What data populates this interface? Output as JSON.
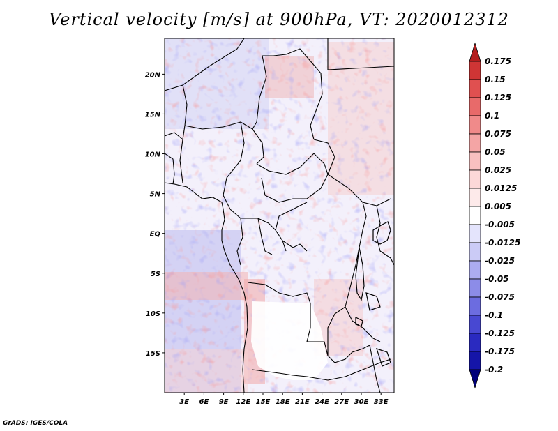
{
  "title": "Vertical velocity [m/s] at 900hPa, VT: 2020012312",
  "footer": "GrADS: IGES/COLA",
  "map": {
    "region": "Central Africa",
    "lat_range": [
      -20,
      24.5
    ],
    "lon_range": [
      0,
      35
    ],
    "lat_labels": [
      {
        "text": "20N",
        "lat": 20
      },
      {
        "text": "15N",
        "lat": 15
      },
      {
        "text": "10N",
        "lat": 10
      },
      {
        "text": "5N",
        "lat": 5
      },
      {
        "text": "EQ",
        "lat": 0
      },
      {
        "text": "5S",
        "lat": -5
      },
      {
        "text": "10S",
        "lat": -10
      },
      {
        "text": "15S",
        "lat": -15
      }
    ],
    "lon_labels": [
      {
        "text": "3E",
        "lon": 3
      },
      {
        "text": "6E",
        "lon": 6
      },
      {
        "text": "9E",
        "lon": 9
      },
      {
        "text": "12E",
        "lon": 12
      },
      {
        "text": "15E",
        "lon": 15
      },
      {
        "text": "18E",
        "lon": 18
      },
      {
        "text": "21E",
        "lon": 21
      },
      {
        "text": "24E",
        "lon": 24
      },
      {
        "text": "27E",
        "lon": 27
      },
      {
        "text": "30E",
        "lon": 30
      },
      {
        "text": "33E",
        "lon": 33
      }
    ]
  },
  "colorbar": {
    "labels": [
      "0.175",
      "0.15",
      "0.125",
      "0.1",
      "0.075",
      "0.05",
      "0.025",
      "0.0125",
      "0.005",
      "-0.005",
      "-0.0125",
      "-0.025",
      "-0.05",
      "-0.075",
      "-0.1",
      "-0.125",
      "-0.175",
      "-0.2"
    ],
    "colors": [
      "#b41e1e",
      "#cf3535",
      "#e05050",
      "#e86a6a",
      "#f08a8a",
      "#f4a5a5",
      "#f8c0c0",
      "#fcd8d8",
      "#fdeaea",
      "#ffffff",
      "#e4e4fc",
      "#cbcbf6",
      "#acacf0",
      "#8c8ce8",
      "#6c6ce0",
      "#4848d2",
      "#2a2ac0",
      "#1515a8",
      "#00007a"
    ]
  }
}
